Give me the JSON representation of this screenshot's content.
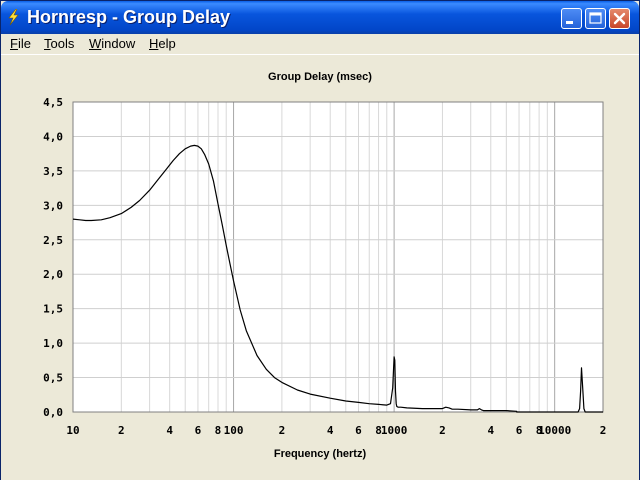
{
  "window": {
    "title": "Hornresp - Group Delay"
  },
  "menu": {
    "items": [
      {
        "label": "File",
        "key": "F"
      },
      {
        "label": "Tools",
        "key": "T"
      },
      {
        "label": "Window",
        "key": "W"
      },
      {
        "label": "Help",
        "key": "H"
      }
    ]
  },
  "icons": {
    "app": "lightning-bolt-icon",
    "minimize": "minimize-icon",
    "maximize": "maximize-icon",
    "close": "close-icon"
  },
  "colors": {
    "titlebar": "#0855DD",
    "plot_bg": "#FFFFFF",
    "grid": "#C8C8C8",
    "curve": "#000000"
  },
  "chart_data": {
    "type": "line",
    "title": "Group Delay (msec)",
    "xlabel": "Frequency (hertz)",
    "ylabel": "",
    "x_scale": "log",
    "xlim": [
      10,
      20000
    ],
    "ylim": [
      0,
      4.5
    ],
    "grid": true,
    "y_ticks": [
      "0,0",
      "0,5",
      "1,0",
      "1,5",
      "2,0",
      "2,5",
      "3,0",
      "3,5",
      "4,0",
      "4,5"
    ],
    "x_ticks": [
      {
        "value": 10,
        "label": "10"
      },
      {
        "value": 20,
        "label": "2"
      },
      {
        "value": 40,
        "label": "4"
      },
      {
        "value": 60,
        "label": "6"
      },
      {
        "value": 80,
        "label": "8"
      },
      {
        "value": 100,
        "label": "100"
      },
      {
        "value": 200,
        "label": "2"
      },
      {
        "value": 400,
        "label": "4"
      },
      {
        "value": 600,
        "label": "6"
      },
      {
        "value": 800,
        "label": "8"
      },
      {
        "value": 1000,
        "label": "1000"
      },
      {
        "value": 2000,
        "label": "2"
      },
      {
        "value": 4000,
        "label": "4"
      },
      {
        "value": 6000,
        "label": "6"
      },
      {
        "value": 8000,
        "label": "8"
      },
      {
        "value": 10000,
        "label": "10000"
      },
      {
        "value": 20000,
        "label": "2"
      }
    ],
    "series": [
      {
        "x": [
          10,
          11,
          12,
          13,
          15,
          17,
          20,
          23,
          26,
          30,
          34,
          38,
          42,
          46,
          50,
          54,
          57,
          60,
          63,
          66,
          70,
          75,
          80,
          85,
          90,
          95,
          100,
          110,
          120,
          140,
          160,
          180,
          200,
          250,
          300,
          400,
          500,
          600,
          700,
          800,
          900,
          950,
          980,
          1000,
          1010,
          1020,
          1030,
          1040,
          1060,
          1100,
          1200,
          1500,
          1800,
          2000,
          2100,
          2200,
          2300,
          2500,
          3000,
          3300,
          3400,
          3500,
          3600,
          3800,
          4000,
          5000,
          5800,
          5800,
          8000,
          10000,
          12000,
          14000,
          14300,
          14500,
          14700,
          15000,
          15200,
          15500,
          20000
        ],
        "values": [
          2.8,
          2.79,
          2.78,
          2.78,
          2.79,
          2.82,
          2.88,
          2.97,
          3.07,
          3.22,
          3.38,
          3.52,
          3.65,
          3.75,
          3.82,
          3.86,
          3.87,
          3.86,
          3.82,
          3.74,
          3.6,
          3.35,
          3.02,
          2.72,
          2.42,
          2.15,
          1.9,
          1.48,
          1.18,
          0.82,
          0.62,
          0.5,
          0.43,
          0.32,
          0.26,
          0.2,
          0.16,
          0.14,
          0.12,
          0.11,
          0.1,
          0.12,
          0.35,
          0.8,
          0.75,
          0.3,
          0.12,
          0.08,
          0.07,
          0.07,
          0.06,
          0.05,
          0.05,
          0.05,
          0.07,
          0.06,
          0.04,
          0.04,
          0.03,
          0.03,
          0.05,
          0.03,
          0.02,
          0.02,
          0.02,
          0.02,
          0.01,
          0.0,
          0.0,
          0.0,
          0.0,
          0.0,
          0.05,
          0.3,
          0.64,
          0.3,
          0.05,
          0.0,
          0.0
        ]
      }
    ]
  }
}
